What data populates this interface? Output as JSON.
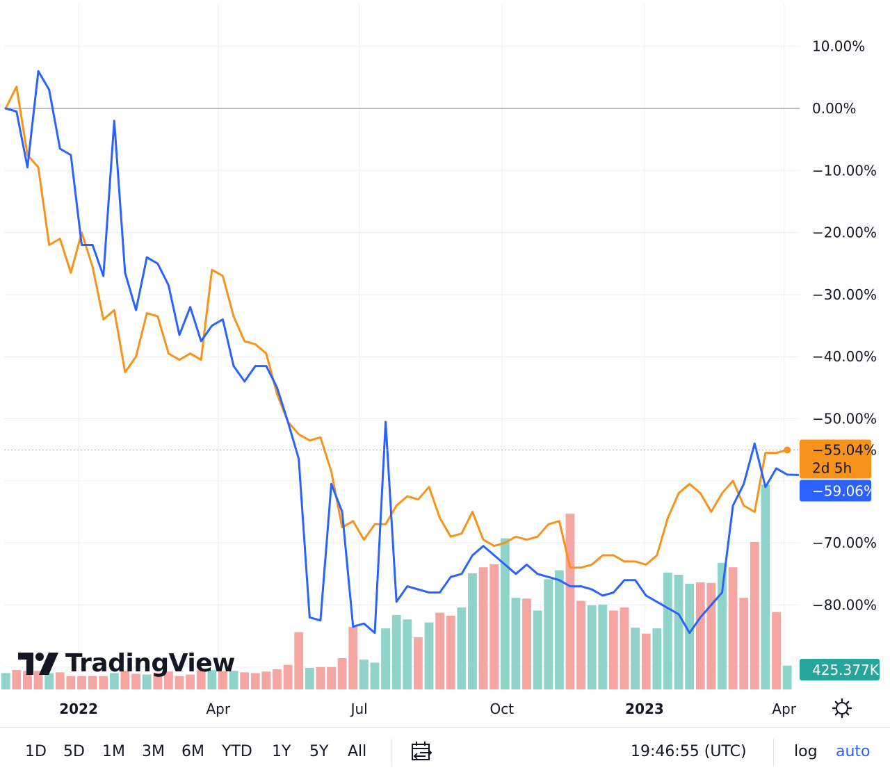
{
  "colors": {
    "blue": "#2962ff",
    "orange": "#f7931a",
    "up_volume": "#8fd3c9",
    "down_volume": "#f5a5a2",
    "volume_badge": "#26a69a",
    "grid": "#eef0f3",
    "zero_line": "#9598a1"
  },
  "watermark": {
    "brand": "TradingView"
  },
  "chart_data": {
    "type": "line",
    "title": "",
    "xlabel": "",
    "ylabel": "",
    "ylim": [
      -93,
      17
    ],
    "y_ticks": [
      {
        "value": 10,
        "label": "10.00%"
      },
      {
        "value": 0,
        "label": "0.00%"
      },
      {
        "value": -10,
        "label": "−10.00%"
      },
      {
        "value": -20,
        "label": "−20.00%"
      },
      {
        "value": -30,
        "label": "−30.00%"
      },
      {
        "value": -40,
        "label": "−40.00%"
      },
      {
        "value": -50,
        "label": "−50.00%"
      },
      {
        "value": -70,
        "label": "−70.00%"
      },
      {
        "value": -80,
        "label": "−80.00%"
      }
    ],
    "x_range": [
      "2021-11-14",
      "2023-04-11"
    ],
    "x_ticks": [
      {
        "date": "2022-01-01",
        "label": "2022",
        "bold": true
      },
      {
        "date": "2022-04-01",
        "label": "Apr",
        "bold": false
      },
      {
        "date": "2022-07-01",
        "label": "Jul",
        "bold": false
      },
      {
        "date": "2022-10-01",
        "label": "Oct",
        "bold": false
      },
      {
        "date": "2023-01-01",
        "label": "2023",
        "bold": true
      },
      {
        "date": "2023-04-01",
        "label": "Apr",
        "bold": false
      }
    ],
    "x_start_date": "2021-11-15",
    "x_step_days": 7,
    "series": [
      {
        "name": "orange series",
        "color": "#f7931a",
        "values": [
          0,
          3.5,
          -7.5,
          -9.5,
          -22,
          -21,
          -26.5,
          -20,
          -25.5,
          -34,
          -32.5,
          -42.5,
          -40,
          -33,
          -33.5,
          -39.5,
          -40.5,
          -39.5,
          -40.5,
          -26,
          -27,
          -33.5,
          -37.5,
          -38,
          -39.5,
          -46,
          -50.5,
          -52.5,
          -53.5,
          -53,
          -58.5,
          -67.5,
          -66.5,
          -69.5,
          -67,
          -67,
          -64,
          -62.5,
          -63,
          -61,
          -66,
          -69,
          -68.5,
          -65,
          -69.5,
          -70.5,
          -70,
          -69,
          -69.5,
          -69,
          -67,
          -66.5,
          -74,
          -74,
          -73.5,
          -72,
          -72,
          -73,
          -73,
          -73.5,
          -72,
          -66,
          -62,
          -60.5,
          -62,
          -65,
          -62,
          -60,
          -64,
          -65,
          -55.5,
          -55.5,
          -55.04
        ]
      },
      {
        "name": "blue series",
        "color": "#2962ff",
        "values": [
          0,
          -0.5,
          -9.5,
          6,
          3,
          -6.5,
          -7.5,
          -22,
          -22,
          -27,
          -2,
          -26.5,
          -32.5,
          -24,
          -25,
          -28.5,
          -36.5,
          -32,
          -37.5,
          -35,
          -34,
          -41.5,
          -44,
          -41.5,
          -41.5,
          -45,
          -50.5,
          -56.5,
          -82,
          -82.5,
          -60.5,
          -65,
          -83.5,
          -83,
          -84.5,
          -50.5,
          -79.5,
          -77,
          -77.5,
          -78,
          -78,
          -75.5,
          -75,
          -72,
          -70.5,
          -72,
          -73.5,
          -75,
          -73.5,
          -75,
          -75.5,
          -76,
          -77,
          -77,
          -77.5,
          -78.5,
          -78,
          -76,
          -76,
          -78.5,
          -79.5,
          -80.5,
          -81.5,
          -84.5,
          -82,
          -80,
          -78,
          -64,
          -60.5,
          -54,
          -61,
          -58,
          -59,
          -59.06
        ]
      }
    ],
    "volume": {
      "last_label": "425.377K",
      "bars": [
        {
          "v": 2.2,
          "up": true
        },
        {
          "v": 2.6,
          "up": false
        },
        {
          "v": 2.5,
          "up": false
        },
        {
          "v": 2.5,
          "up": false
        },
        {
          "v": 2.2,
          "up": true
        },
        {
          "v": 2.3,
          "up": false
        },
        {
          "v": 1.8,
          "up": false
        },
        {
          "v": 1.8,
          "up": false
        },
        {
          "v": 1.8,
          "up": false
        },
        {
          "v": 1.8,
          "up": false
        },
        {
          "v": 2.2,
          "up": true
        },
        {
          "v": 2.5,
          "up": false
        },
        {
          "v": 2.1,
          "up": false
        },
        {
          "v": 2.0,
          "up": true
        },
        {
          "v": 2.2,
          "up": false
        },
        {
          "v": 2.4,
          "up": false
        },
        {
          "v": 1.8,
          "up": false
        },
        {
          "v": 2.0,
          "up": false
        },
        {
          "v": 2.6,
          "up": false
        },
        {
          "v": 2.6,
          "up": true
        },
        {
          "v": 2.5,
          "up": false
        },
        {
          "v": 2.5,
          "up": true
        },
        {
          "v": 2.3,
          "up": false
        },
        {
          "v": 2.2,
          "up": false
        },
        {
          "v": 2.4,
          "up": false
        },
        {
          "v": 2.7,
          "up": false
        },
        {
          "v": 3.3,
          "up": false
        },
        {
          "v": 7.7,
          "up": false
        },
        {
          "v": 2.9,
          "up": true
        },
        {
          "v": 3.0,
          "up": false
        },
        {
          "v": 3.0,
          "up": false
        },
        {
          "v": 4.2,
          "up": false
        },
        {
          "v": 8.4,
          "up": false
        },
        {
          "v": 4.0,
          "up": true
        },
        {
          "v": 3.6,
          "up": true
        },
        {
          "v": 8.2,
          "up": true
        },
        {
          "v": 10.0,
          "up": true
        },
        {
          "v": 9.4,
          "up": true
        },
        {
          "v": 7.0,
          "up": false
        },
        {
          "v": 9.0,
          "up": true
        },
        {
          "v": 10.3,
          "up": false
        },
        {
          "v": 9.9,
          "up": false
        },
        {
          "v": 11.0,
          "up": true
        },
        {
          "v": 15.6,
          "up": true
        },
        {
          "v": 16.4,
          "up": false
        },
        {
          "v": 16.8,
          "up": false
        },
        {
          "v": 20.3,
          "up": true
        },
        {
          "v": 12.3,
          "up": true
        },
        {
          "v": 12.2,
          "up": false
        },
        {
          "v": 10.6,
          "up": true
        },
        {
          "v": 14.8,
          "up": true
        },
        {
          "v": 16.0,
          "up": true
        },
        {
          "v": 23.6,
          "up": false
        },
        {
          "v": 11.9,
          "up": false
        },
        {
          "v": 11.3,
          "up": true
        },
        {
          "v": 11.4,
          "up": true
        },
        {
          "v": 10.6,
          "up": false
        },
        {
          "v": 11.0,
          "up": false
        },
        {
          "v": 8.3,
          "up": true
        },
        {
          "v": 7.5,
          "up": false
        },
        {
          "v": 8.2,
          "up": true
        },
        {
          "v": 15.7,
          "up": true
        },
        {
          "v": 15.4,
          "up": true
        },
        {
          "v": 14.2,
          "up": true
        },
        {
          "v": 14.4,
          "up": false
        },
        {
          "v": 14.3,
          "up": false
        },
        {
          "v": 17.0,
          "up": true
        },
        {
          "v": 16.4,
          "up": false
        },
        {
          "v": 12.3,
          "up": false
        },
        {
          "v": 19.8,
          "up": false
        },
        {
          "v": 27.5,
          "up": true
        },
        {
          "v": 10.4,
          "up": false
        },
        {
          "v": 3.2,
          "up": true
        }
      ]
    },
    "last_values": {
      "orange": "−55.04%",
      "orange_countdown": "2d 5h",
      "blue": "−59.06%"
    }
  },
  "toolbar": {
    "ranges": [
      "1D",
      "5D",
      "1M",
      "3M",
      "6M",
      "YTD",
      "1Y",
      "5Y",
      "All"
    ],
    "time": "19:46:55 (UTC)",
    "log": "log",
    "auto": "auto"
  }
}
